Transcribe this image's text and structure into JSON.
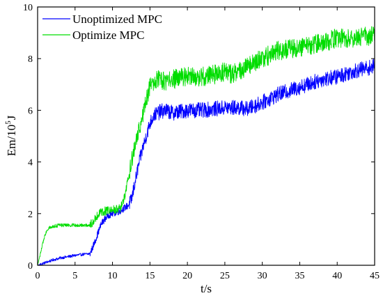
{
  "chart_data": {
    "type": "line",
    "title": "",
    "xlabel": "t/s",
    "ylabel": {
      "base": "Em/10",
      "exponent": "5",
      "unit": "J"
    },
    "xlim": [
      0,
      45
    ],
    "ylim": [
      0,
      10
    ],
    "x_ticks": [
      0,
      5,
      10,
      15,
      20,
      25,
      30,
      35,
      40,
      45
    ],
    "y_ticks": [
      0,
      2,
      4,
      6,
      8,
      10
    ],
    "grid": false,
    "legend_position": "top-left",
    "series": [
      {
        "name": "Unoptimized MPC",
        "color": "#0000ff",
        "noise": 0.3,
        "x": [
          0,
          1,
          2,
          3,
          4,
          5,
          6,
          7,
          7.5,
          8,
          8.5,
          9,
          9.5,
          10,
          10.5,
          11,
          11.5,
          12,
          12.5,
          13,
          13.5,
          14,
          14.5,
          15,
          15.5,
          16,
          17,
          18,
          20,
          22,
          25,
          27,
          28,
          30,
          32,
          35,
          38,
          40,
          42,
          45
        ],
        "y": [
          0,
          0.1,
          0.2,
          0.28,
          0.33,
          0.38,
          0.42,
          0.45,
          0.8,
          1.2,
          1.6,
          1.8,
          1.95,
          2.0,
          2.05,
          2.1,
          2.2,
          2.3,
          2.5,
          3.2,
          3.9,
          4.5,
          5.0,
          5.5,
          5.8,
          5.9,
          6.0,
          5.9,
          6.0,
          6.0,
          6.1,
          6.1,
          6.05,
          6.3,
          6.6,
          6.9,
          7.2,
          7.3,
          7.5,
          7.7
        ]
      },
      {
        "name": "Optimize MPC",
        "color": "#00dd00",
        "noise": 0.38,
        "x": [
          0,
          0.5,
          1,
          1.5,
          2,
          3,
          4,
          5,
          6,
          7,
          7.5,
          8,
          8.5,
          9,
          10,
          11,
          11.5,
          12,
          12.5,
          13,
          13.5,
          14,
          14.5,
          15,
          15.5,
          16,
          17,
          18,
          20,
          22,
          24,
          25,
          26,
          28,
          30,
          32,
          34,
          36,
          38,
          40,
          42,
          45
        ],
        "y": [
          0,
          0.6,
          1.2,
          1.45,
          1.5,
          1.55,
          1.55,
          1.55,
          1.55,
          1.55,
          1.75,
          1.95,
          2.05,
          2.1,
          2.15,
          2.2,
          2.5,
          3.2,
          4.0,
          4.6,
          5.2,
          5.8,
          6.4,
          6.9,
          7.1,
          7.2,
          7.1,
          7.2,
          7.3,
          7.3,
          7.4,
          7.5,
          7.4,
          7.7,
          8.0,
          8.3,
          8.4,
          8.5,
          8.6,
          8.8,
          8.8,
          8.9
        ]
      }
    ]
  }
}
